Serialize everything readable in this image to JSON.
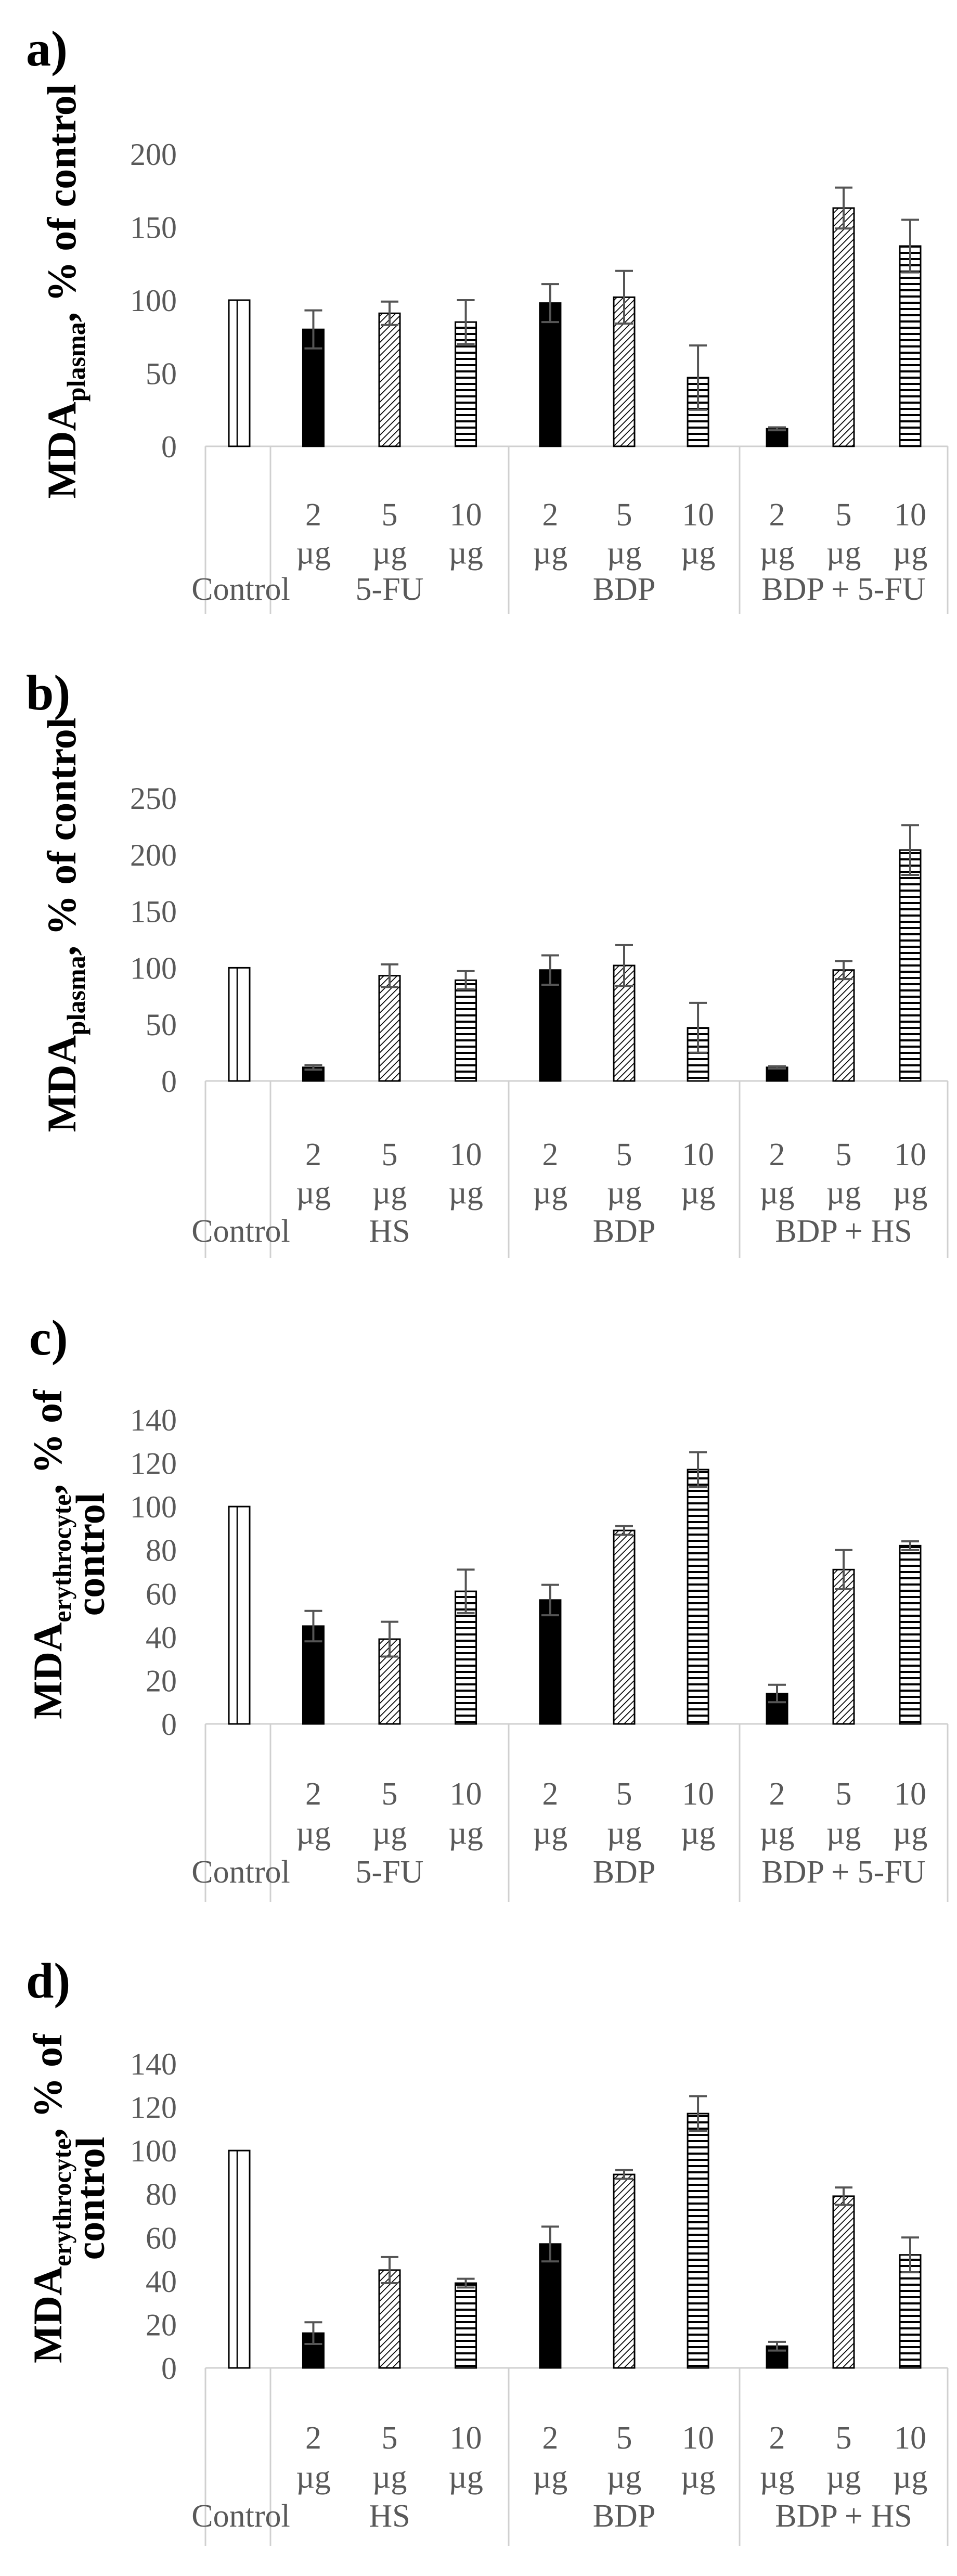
{
  "figure": {
    "panels": [
      {
        "letter": "a)"
      },
      {
        "letter": "b)"
      },
      {
        "letter": "c)"
      },
      {
        "letter": "d)"
      }
    ]
  },
  "chart_data": [
    {
      "type": "bar",
      "panel": "a)",
      "title": "",
      "ylabel": {
        "prefix": "MDA",
        "subscript": "plasma",
        "suffix": ", % of control"
      },
      "ylim": [
        0,
        200
      ],
      "yticks": [
        0,
        50,
        100,
        150,
        200
      ],
      "dose_labels": [
        [
          "2",
          "µg"
        ],
        [
          "5",
          "µg"
        ],
        [
          "10",
          "µg"
        ]
      ],
      "groups": [
        {
          "label": "Control",
          "bars": [
            {
              "value": 100,
              "pattern": "open"
            }
          ]
        },
        {
          "label": "5-FU",
          "bars": [
            {
              "dose": "2 µg",
              "value": 80,
              "error": 13,
              "pattern": "solid"
            },
            {
              "dose": "5 µg",
              "value": 91,
              "error": 8,
              "pattern": "hatch"
            },
            {
              "dose": "10 µg",
              "value": 85,
              "error": 15,
              "pattern": "hlines"
            }
          ]
        },
        {
          "label": "BDP",
          "bars": [
            {
              "dose": "2 µg",
              "value": 98,
              "error": 13,
              "pattern": "solid"
            },
            {
              "dose": "5 µg",
              "value": 102,
              "error": 18,
              "pattern": "hatch"
            },
            {
              "dose": "10 µg",
              "value": 47,
              "error": 22,
              "pattern": "hlines"
            }
          ]
        },
        {
          "label": "BDP + 5-FU",
          "bars": [
            {
              "dose": "2 µg",
              "value": 12,
              "error": 1,
              "pattern": "solid"
            },
            {
              "dose": "5 µg",
              "value": 163,
              "error": 14,
              "pattern": "hatch"
            },
            {
              "dose": "10 µg",
              "value": 137,
              "error": 18,
              "pattern": "hlines"
            }
          ]
        }
      ],
      "grid": false
    },
    {
      "type": "bar",
      "panel": "b)",
      "title": "",
      "ylabel": {
        "prefix": "MDA",
        "subscript": "plasma",
        "suffix": ", % of control"
      },
      "ylim": [
        0,
        250
      ],
      "yticks": [
        0,
        50,
        100,
        150,
        200,
        250
      ],
      "dose_labels": [
        [
          "2",
          "µg"
        ],
        [
          "5",
          "µg"
        ],
        [
          "10",
          "µg"
        ]
      ],
      "groups": [
        {
          "label": "Control",
          "bars": [
            {
              "value": 100,
              "pattern": "open"
            }
          ]
        },
        {
          "label": "HS",
          "bars": [
            {
              "dose": "2 µg",
              "value": 12,
              "error": 2,
              "pattern": "solid"
            },
            {
              "dose": "5 µg",
              "value": 93,
              "error": 10,
              "pattern": "hatch"
            },
            {
              "dose": "10 µg",
              "value": 89,
              "error": 8,
              "pattern": "hlines"
            }
          ]
        },
        {
          "label": "BDP",
          "bars": [
            {
              "dose": "2 µg",
              "value": 98,
              "error": 13,
              "pattern": "solid"
            },
            {
              "dose": "5 µg",
              "value": 102,
              "error": 18,
              "pattern": "hatch"
            },
            {
              "dose": "10 µg",
              "value": 47,
              "error": 22,
              "pattern": "hlines"
            }
          ]
        },
        {
          "label": "BDP + HS",
          "bars": [
            {
              "dose": "2 µg",
              "value": 12,
              "error": 1,
              "pattern": "solid"
            },
            {
              "dose": "5 µg",
              "value": 98,
              "error": 8,
              "pattern": "hatch"
            },
            {
              "dose": "10 µg",
              "value": 204,
              "error": 22,
              "pattern": "hlines"
            }
          ]
        }
      ],
      "grid": false
    },
    {
      "type": "bar",
      "panel": "c)",
      "title": "",
      "ylabel": {
        "prefix": "MDA",
        "subscript": "erythrocyte",
        "suffix": ", % of",
        "line2": "control"
      },
      "ylim": [
        0,
        140
      ],
      "yticks": [
        0,
        20,
        40,
        60,
        80,
        100,
        120,
        140
      ],
      "dose_labels": [
        [
          "2",
          "µg"
        ],
        [
          "5",
          "µg"
        ],
        [
          "10",
          "µg"
        ]
      ],
      "groups": [
        {
          "label": "Control",
          "bars": [
            {
              "value": 100,
              "pattern": "open"
            }
          ]
        },
        {
          "label": "5-FU",
          "bars": [
            {
              "dose": "2 µg",
              "value": 45,
              "error": 7,
              "pattern": "solid"
            },
            {
              "dose": "5 µg",
              "value": 39,
              "error": 8,
              "pattern": "hatch"
            },
            {
              "dose": "10 µg",
              "value": 61,
              "error": 10,
              "pattern": "hlines"
            }
          ]
        },
        {
          "label": "BDP",
          "bars": [
            {
              "dose": "2 µg",
              "value": 57,
              "error": 7,
              "pattern": "solid"
            },
            {
              "dose": "5 µg",
              "value": 89,
              "error": 2,
              "pattern": "hatch"
            },
            {
              "dose": "10 µg",
              "value": 117,
              "error": 8,
              "pattern": "hlines"
            }
          ]
        },
        {
          "label": "BDP + 5-FU",
          "bars": [
            {
              "dose": "2 µg",
              "value": 14,
              "error": 4,
              "pattern": "solid"
            },
            {
              "dose": "5 µg",
              "value": 71,
              "error": 9,
              "pattern": "hatch"
            },
            {
              "dose": "10 µg",
              "value": 82,
              "error": 2,
              "pattern": "hlines"
            }
          ]
        }
      ],
      "grid": false
    },
    {
      "type": "bar",
      "panel": "d)",
      "title": "",
      "ylabel": {
        "prefix": "MDA",
        "subscript": "erythrocyte",
        "suffix": ", % of",
        "line2": "control"
      },
      "ylim": [
        0,
        140
      ],
      "yticks": [
        0,
        20,
        40,
        60,
        80,
        100,
        120,
        140
      ],
      "dose_labels": [
        [
          "2",
          "µg"
        ],
        [
          "5",
          "µg"
        ],
        [
          "10",
          "µg"
        ]
      ],
      "groups": [
        {
          "label": "Control",
          "bars": [
            {
              "value": 100,
              "pattern": "open"
            }
          ]
        },
        {
          "label": "HS",
          "bars": [
            {
              "dose": "2 µg",
              "value": 16,
              "error": 5,
              "pattern": "solid"
            },
            {
              "dose": "5 µg",
              "value": 45,
              "error": 6,
              "pattern": "hatch"
            },
            {
              "dose": "10 µg",
              "value": 39,
              "error": 2,
              "pattern": "hlines"
            }
          ]
        },
        {
          "label": "BDP",
          "bars": [
            {
              "dose": "2 µg",
              "value": 57,
              "error": 8,
              "pattern": "solid"
            },
            {
              "dose": "5 µg",
              "value": 89,
              "error": 2,
              "pattern": "hatch"
            },
            {
              "dose": "10 µg",
              "value": 117,
              "error": 8,
              "pattern": "hlines"
            }
          ]
        },
        {
          "label": "BDP + HS",
          "bars": [
            {
              "dose": "2 µg",
              "value": 10,
              "error": 2,
              "pattern": "solid"
            },
            {
              "dose": "5 µg",
              "value": 79,
              "error": 4,
              "pattern": "hatch"
            },
            {
              "dose": "10 µg",
              "value": 52,
              "error": 8,
              "pattern": "hlines"
            }
          ]
        }
      ],
      "grid": false
    }
  ]
}
